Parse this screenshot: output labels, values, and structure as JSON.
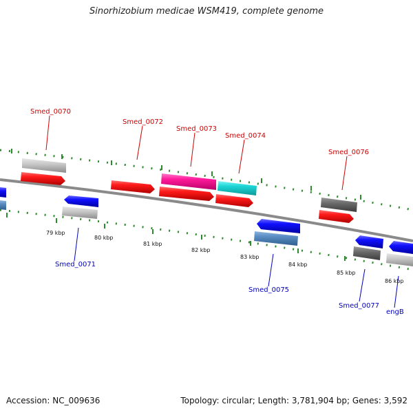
{
  "title": "Sinorhizobium medicae WSM419, complete genome",
  "accession_text": "Accession: NC_009636",
  "summary_text": "Topology: circular; Length: 3,781,904 bp; Genes: 3,592",
  "colors": {
    "backbone": "#8a8a8a",
    "tick": "#2d8a2d",
    "label_forward": "#cc0000",
    "label_reverse": "#0000bb",
    "scale_label": "#111111"
  },
  "scale_labels": [
    "79 kbp",
    "80 kbp",
    "81 kbp",
    "82 kbp",
    "83 kbp",
    "84 kbp",
    "85 kbp",
    "86 kbp"
  ],
  "gene_labels": {
    "forward": [
      "Smed_0070",
      "Smed_0072",
      "Smed_0073",
      "Smed_0074",
      "Smed_0076"
    ],
    "reverse": [
      "Smed_0071",
      "Smed_0075",
      "Smed_0077",
      "engB"
    ]
  }
}
